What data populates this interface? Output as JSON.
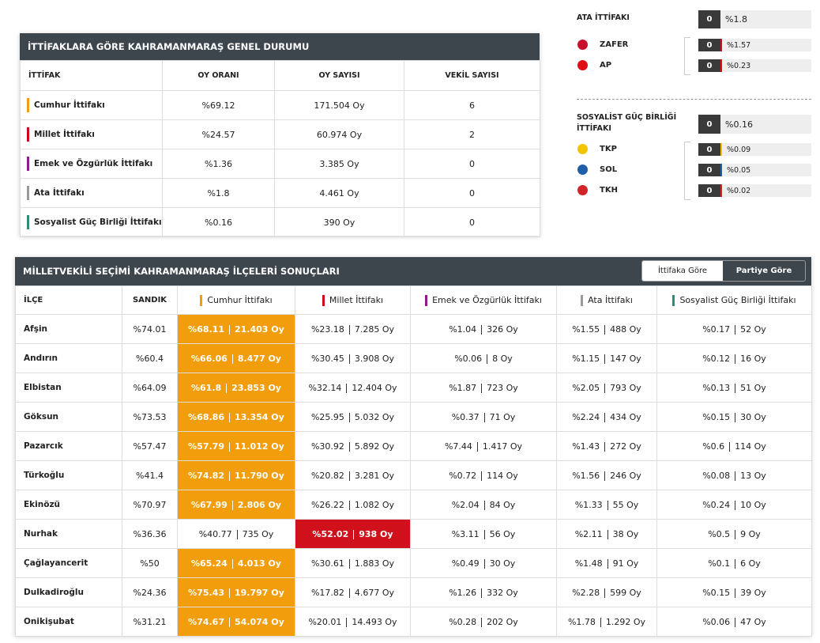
{
  "summary": {
    "title": "İTTİFAKLARA GÖRE KAHRAMANMARAŞ GENEL DURUMU",
    "headers": [
      "İTTİFAK",
      "OY ORANI",
      "OY SAYISI",
      "VEKİL SAYISI"
    ],
    "rows": [
      {
        "color": "#f39c12",
        "name": "Cumhur İttifakı",
        "rate": "%69.12",
        "votes": "171.504 Oy",
        "seats": "6"
      },
      {
        "color": "#d0021b",
        "name": "Millet İttifakı",
        "rate": "%24.57",
        "votes": "60.974 Oy",
        "seats": "2"
      },
      {
        "color": "#8e1c8e",
        "name": "Emek ve Özgürlük İttifakı",
        "rate": "%1.36",
        "votes": "3.385 Oy",
        "seats": "0"
      },
      {
        "color": "#999999",
        "name": "Ata İttifakı",
        "rate": "%1.8",
        "votes": "4.461 Oy",
        "seats": "0"
      },
      {
        "color": "#2e8b7a",
        "name": "Sosyalist Güç Birliği İttifakı",
        "rate": "%0.16",
        "votes": "390 Oy",
        "seats": "0"
      }
    ]
  },
  "alliances": [
    {
      "name": "ATA İTTİFAKI",
      "seats": "0",
      "rate": "%1.8",
      "parties": [
        {
          "name": "ZAFER",
          "seats": "0",
          "rate": "%1.57",
          "color": "#c8102e"
        },
        {
          "name": "AP",
          "seats": "0",
          "rate": "%0.23",
          "color": "#e30a17"
        }
      ]
    },
    {
      "name": "SOSYALİST GÜÇ BİRLİĞİ İTTİFAKI",
      "seats": "0",
      "rate": "%0.16",
      "parties": [
        {
          "name": "TKP",
          "seats": "0",
          "rate": "%0.09",
          "color": "#f2c400"
        },
        {
          "name": "SOL",
          "seats": "0",
          "rate": "%0.05",
          "color": "#1f5fa8"
        },
        {
          "name": "TKH",
          "seats": "0",
          "rate": "%0.02",
          "color": "#d2232a"
        }
      ]
    }
  ],
  "districts": {
    "title": "MİLLETVEKİLİ SEÇİMİ KAHRAMANMARAŞ İLÇELERİ SONUÇLARI",
    "tabs": [
      "İttifaka Göre",
      "Partiye Göre"
    ],
    "active_tab": 0,
    "headers": [
      "İLÇE",
      "SANDIK"
    ],
    "alliances": [
      {
        "name": "Cumhur İttifakı",
        "color": "#f39c12",
        "highlight": "#f29d0b"
      },
      {
        "name": "Millet İttifakı",
        "color": "#d0021b",
        "highlight": "#d0101b"
      },
      {
        "name": "Emek ve Özgürlük İttifakı",
        "color": "#8e1c8e",
        "highlight": "#8e1c8e"
      },
      {
        "name": "Ata İttifakı",
        "color": "#999999",
        "highlight": "#999999"
      },
      {
        "name": "Sosyalist Güç Birliği İttifakı",
        "color": "#2e8b7a",
        "highlight": "#2e8b7a"
      }
    ],
    "rows": [
      {
        "name": "Afşin",
        "sandik": "%74.01",
        "winner": 0,
        "cells": [
          [
            "%68.11",
            "21.403 Oy"
          ],
          [
            "%23.18",
            "7.285 Oy"
          ],
          [
            "%1.04",
            "326 Oy"
          ],
          [
            "%1.55",
            "488 Oy"
          ],
          [
            "%0.17",
            "52 Oy"
          ]
        ]
      },
      {
        "name": "Andırın",
        "sandik": "%60.4",
        "winner": 0,
        "cells": [
          [
            "%66.06",
            "8.477 Oy"
          ],
          [
            "%30.45",
            "3.908 Oy"
          ],
          [
            "%0.06",
            "8 Oy"
          ],
          [
            "%1.15",
            "147 Oy"
          ],
          [
            "%0.12",
            "16 Oy"
          ]
        ]
      },
      {
        "name": "Elbistan",
        "sandik": "%64.09",
        "winner": 0,
        "cells": [
          [
            "%61.8",
            "23.853 Oy"
          ],
          [
            "%32.14",
            "12.404 Oy"
          ],
          [
            "%1.87",
            "723 Oy"
          ],
          [
            "%2.05",
            "793 Oy"
          ],
          [
            "%0.13",
            "51 Oy"
          ]
        ]
      },
      {
        "name": "Göksun",
        "sandik": "%73.53",
        "winner": 0,
        "cells": [
          [
            "%68.86",
            "13.354 Oy"
          ],
          [
            "%25.95",
            "5.032 Oy"
          ],
          [
            "%0.37",
            "71 Oy"
          ],
          [
            "%2.24",
            "434 Oy"
          ],
          [
            "%0.15",
            "30 Oy"
          ]
        ]
      },
      {
        "name": "Pazarcık",
        "sandik": "%57.47",
        "winner": 0,
        "cells": [
          [
            "%57.79",
            "11.012 Oy"
          ],
          [
            "%30.92",
            "5.892 Oy"
          ],
          [
            "%7.44",
            "1.417 Oy"
          ],
          [
            "%1.43",
            "272 Oy"
          ],
          [
            "%0.6",
            "114 Oy"
          ]
        ]
      },
      {
        "name": "Türkoğlu",
        "sandik": "%41.4",
        "winner": 0,
        "cells": [
          [
            "%74.82",
            "11.790 Oy"
          ],
          [
            "%20.82",
            "3.281 Oy"
          ],
          [
            "%0.72",
            "114 Oy"
          ],
          [
            "%1.56",
            "246 Oy"
          ],
          [
            "%0.08",
            "13 Oy"
          ]
        ]
      },
      {
        "name": "Ekinözü",
        "sandik": "%70.97",
        "winner": 0,
        "cells": [
          [
            "%67.99",
            "2.806 Oy"
          ],
          [
            "%26.22",
            "1.082 Oy"
          ],
          [
            "%2.04",
            "84 Oy"
          ],
          [
            "%1.33",
            "55 Oy"
          ],
          [
            "%0.24",
            "10 Oy"
          ]
        ]
      },
      {
        "name": "Nurhak",
        "sandik": "%36.36",
        "winner": 1,
        "cells": [
          [
            "%40.77",
            "735 Oy"
          ],
          [
            "%52.02",
            "938 Oy"
          ],
          [
            "%3.11",
            "56 Oy"
          ],
          [
            "%2.11",
            "38 Oy"
          ],
          [
            "%0.5",
            "9 Oy"
          ]
        ]
      },
      {
        "name": "Çağlayancerit",
        "sandik": "%50",
        "winner": 0,
        "cells": [
          [
            "%65.24",
            "4.013 Oy"
          ],
          [
            "%30.61",
            "1.883 Oy"
          ],
          [
            "%0.49",
            "30 Oy"
          ],
          [
            "%1.48",
            "91 Oy"
          ],
          [
            "%0.1",
            "6 Oy"
          ]
        ]
      },
      {
        "name": "Dulkadiroğlu",
        "sandik": "%24.36",
        "winner": 0,
        "cells": [
          [
            "%75.43",
            "19.797 Oy"
          ],
          [
            "%17.82",
            "4.677 Oy"
          ],
          [
            "%1.26",
            "332 Oy"
          ],
          [
            "%2.28",
            "599 Oy"
          ],
          [
            "%0.15",
            "39 Oy"
          ]
        ]
      },
      {
        "name": "Onikişubat",
        "sandik": "%31.21",
        "winner": 0,
        "cells": [
          [
            "%74.67",
            "54.074 Oy"
          ],
          [
            "%20.01",
            "14.493 Oy"
          ],
          [
            "%0.28",
            "202 Oy"
          ],
          [
            "%1.78",
            "1.292 Oy"
          ],
          [
            "%0.06",
            "47 Oy"
          ]
        ]
      }
    ]
  }
}
